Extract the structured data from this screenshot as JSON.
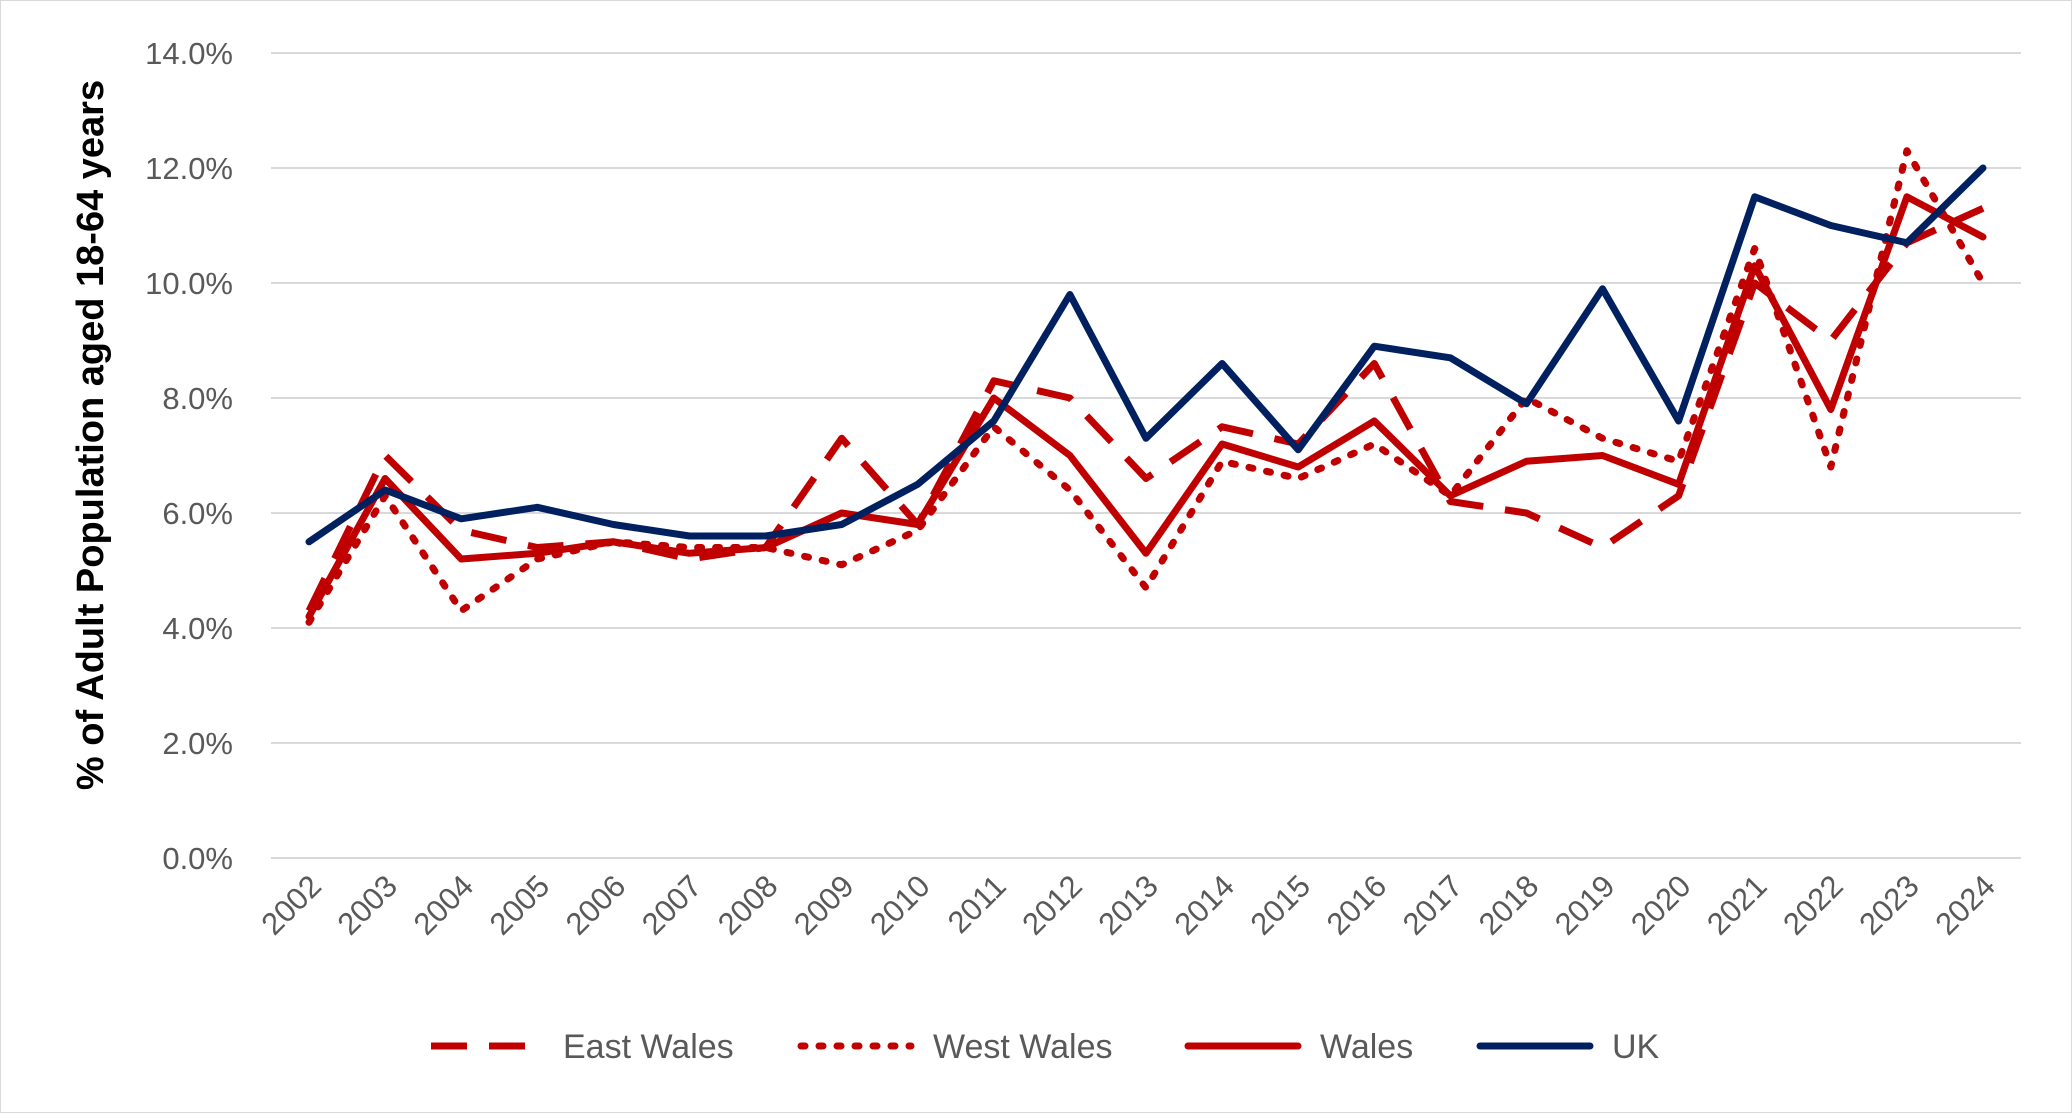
{
  "chart_data": {
    "type": "line",
    "title": "",
    "xlabel": "",
    "ylabel": "% of Adult Population aged 18-64 years",
    "ylim": [
      0,
      14
    ],
    "y_ticks": [
      "0.0%",
      "2.0%",
      "4.0%",
      "6.0%",
      "8.0%",
      "10.0%",
      "12.0%",
      "14.0%"
    ],
    "grid": "horizontal",
    "legend_position": "bottom",
    "categories": [
      "2002",
      "2003",
      "2004",
      "2005",
      "2006",
      "2007",
      "2008",
      "2009",
      "2010",
      "2011",
      "2012",
      "2013",
      "2014",
      "2015",
      "2016",
      "2017",
      "2018",
      "2019",
      "2020",
      "2021",
      "2022",
      "2023",
      "2024"
    ],
    "series": [
      {
        "name": "East Wales",
        "style": "dashed",
        "color": "#c00000",
        "values": [
          4.3,
          7.0,
          5.7,
          5.4,
          5.5,
          5.2,
          5.4,
          7.3,
          5.8,
          8.3,
          8.0,
          6.6,
          7.5,
          7.2,
          8.6,
          6.2,
          6.0,
          5.4,
          6.3,
          10.0,
          9.0,
          10.7,
          11.3
        ]
      },
      {
        "name": "West Wales",
        "style": "dotted",
        "color": "#c00000",
        "values": [
          4.1,
          6.3,
          4.3,
          5.2,
          5.5,
          5.4,
          5.4,
          5.1,
          5.7,
          7.5,
          6.4,
          4.7,
          6.9,
          6.6,
          7.2,
          6.3,
          8.0,
          7.3,
          6.9,
          10.6,
          6.8,
          12.3,
          10.0
        ]
      },
      {
        "name": "Wales",
        "style": "solid",
        "color": "#c00000",
        "values": [
          4.2,
          6.6,
          5.2,
          5.3,
          5.5,
          5.3,
          5.4,
          6.0,
          5.8,
          8.0,
          7.0,
          5.3,
          7.2,
          6.8,
          7.6,
          6.3,
          6.9,
          7.0,
          6.5,
          10.3,
          7.8,
          11.5,
          10.8
        ]
      },
      {
        "name": "UK",
        "style": "solid",
        "color": "#002060",
        "values": [
          5.5,
          6.4,
          5.9,
          6.1,
          5.8,
          5.6,
          5.6,
          5.8,
          6.5,
          7.6,
          9.8,
          7.3,
          8.6,
          7.1,
          8.9,
          8.7,
          7.9,
          9.9,
          7.6,
          11.5,
          11.0,
          10.7,
          12.0
        ]
      }
    ]
  }
}
